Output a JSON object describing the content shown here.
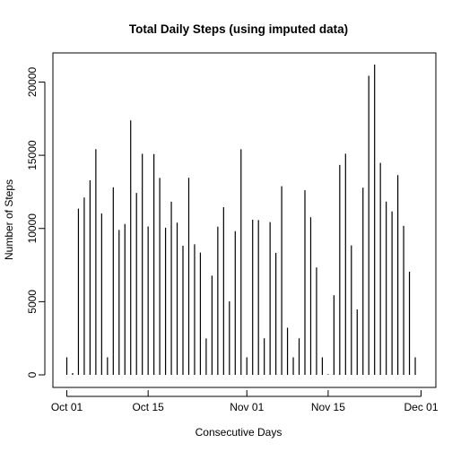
{
  "chart_data": {
    "type": "bar",
    "style": "histogram-lines",
    "title": "Total Daily Steps (using imputed data)",
    "xlabel": "Consecutive Days",
    "ylabel": "Number of Steps",
    "x_start": "2012-10-01",
    "x_ticks": [
      {
        "day": 0,
        "label": "Oct 01"
      },
      {
        "day": 14,
        "label": "Oct 15"
      },
      {
        "day": 31,
        "label": "Nov 01"
      },
      {
        "day": 45,
        "label": "Nov 15"
      },
      {
        "day": 61,
        "label": "Dec 01"
      }
    ],
    "y_ticks": [
      0,
      5000,
      10000,
      15000,
      20000
    ],
    "xlim": [
      0,
      61
    ],
    "ylim": [
      0,
      21194
    ],
    "grid": false,
    "legend": "none",
    "values": [
      1200,
      126,
      11352,
      12116,
      13294,
      15420,
      11015,
      1200,
      12811,
      9900,
      10304,
      17382,
      12426,
      15098,
      10139,
      15084,
      13452,
      10056,
      11829,
      10395,
      8821,
      13460,
      8918,
      8355,
      2492,
      6778,
      10119,
      11458,
      5018,
      9819,
      15414,
      1200,
      10600,
      10571,
      2500,
      10439,
      8334,
      12883,
      3219,
      1200,
      2500,
      12608,
      10765,
      7336,
      1200,
      41,
      5441,
      14339,
      15110,
      8841,
      4472,
      12787,
      20427,
      21194,
      14478,
      11834,
      11162,
      13646,
      10183,
      7047,
      1200
    ]
  }
}
